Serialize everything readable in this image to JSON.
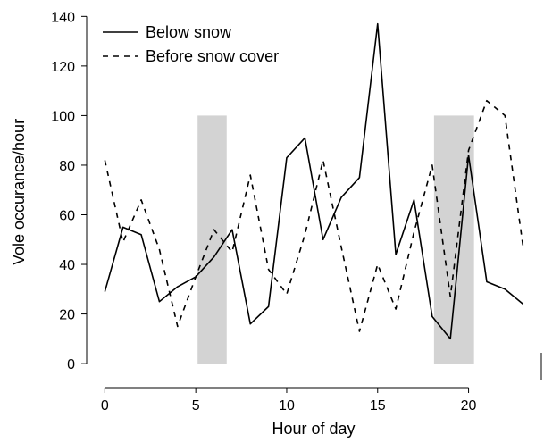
{
  "chart_data": {
    "type": "line",
    "title": "",
    "xlabel": "Hour of day",
    "ylabel": "Vole occurance/hour",
    "xlim": [
      -1,
      24
    ],
    "ylim": [
      -5,
      143
    ],
    "xticks": [
      0,
      5,
      10,
      15,
      20
    ],
    "yticks": [
      0,
      20,
      40,
      60,
      80,
      100,
      120,
      140
    ],
    "x": [
      0,
      1,
      2,
      3,
      4,
      5,
      6,
      7,
      8,
      9,
      10,
      11,
      12,
      13,
      14,
      15,
      16,
      17,
      18,
      19,
      20,
      21,
      22,
      23
    ],
    "shaded_regions": [
      {
        "x0": 5.1,
        "x1": 6.7,
        "y0": 0,
        "y1": 100
      },
      {
        "x0": 18.1,
        "x1": 20.3,
        "y0": 0,
        "y1": 100
      }
    ],
    "shade_color": "#d3d3d3",
    "series": [
      {
        "name": "Below snow",
        "line_style": "solid",
        "color": "#000000",
        "values": [
          29,
          55,
          52,
          25,
          31,
          35,
          43,
          54,
          16,
          23,
          83,
          91,
          50,
          67,
          75,
          137,
          44,
          66,
          19,
          10,
          84,
          33,
          30,
          24
        ]
      },
      {
        "name": "Before snow cover",
        "line_style": "dashed",
        "color": "#000000",
        "values": [
          82,
          49,
          66,
          46,
          15,
          35,
          54,
          45,
          76,
          38,
          28,
          52,
          82,
          47,
          13,
          40,
          22,
          53,
          80,
          27,
          86,
          106,
          100,
          47
        ]
      }
    ],
    "legend_position": "top-left",
    "grid": false
  }
}
